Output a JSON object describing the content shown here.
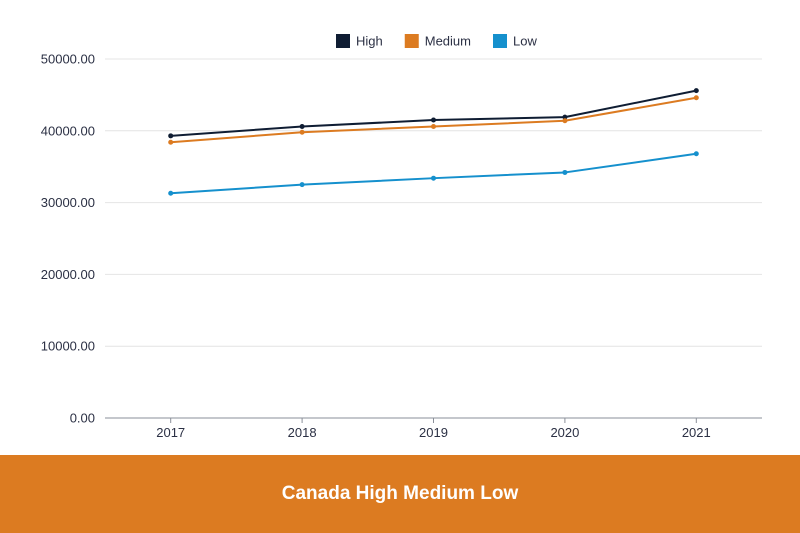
{
  "colors": {
    "high": "#0f1d33",
    "medium": "#dc7b21",
    "low": "#1590cd",
    "grid": "#e4e4e4",
    "axis": "#8a8f99",
    "footer": "#dc7b21"
  },
  "footer": {
    "title": "Canada High Medium Low"
  },
  "chart_data": {
    "type": "line",
    "title": "Canada High Medium Low",
    "xlabel": "",
    "ylabel": "",
    "categories": [
      "2017",
      "2018",
      "2019",
      "2020",
      "2021"
    ],
    "ylim": [
      0,
      50000
    ],
    "yticks": [
      "0.00",
      "10000.00",
      "20000.00",
      "30000.00",
      "40000.00",
      "50000.00"
    ],
    "grid": true,
    "legend": "top-center",
    "series": [
      {
        "name": "High",
        "color": "#0f1d33",
        "values": [
          39300,
          40600,
          41500,
          41900,
          45600
        ]
      },
      {
        "name": "Medium",
        "color": "#dc7b21",
        "values": [
          38400,
          39800,
          40600,
          41400,
          44600
        ]
      },
      {
        "name": "Low",
        "color": "#1590cd",
        "values": [
          31300,
          32500,
          33400,
          34200,
          36800
        ]
      }
    ]
  }
}
